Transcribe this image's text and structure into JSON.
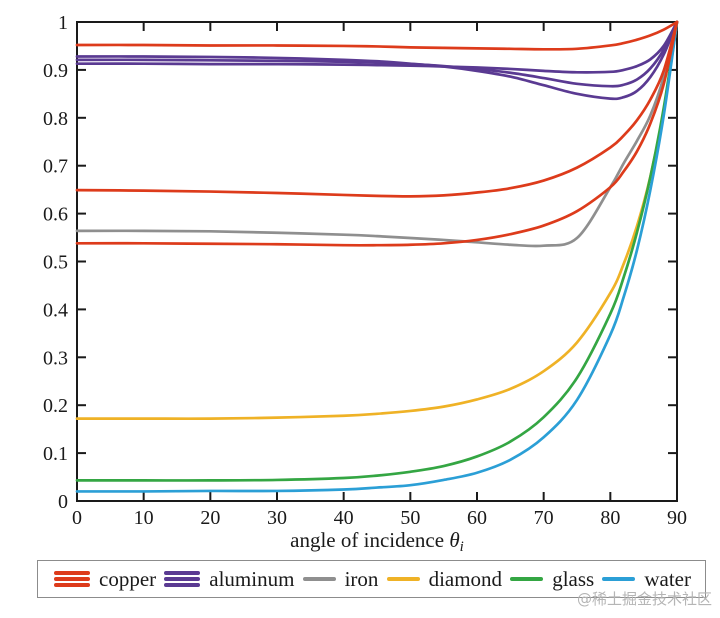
{
  "watermark": "@稀土掘金技术社区",
  "colors": {
    "copper": "#dd3b1b",
    "aluminum": "#5a3a92",
    "iron": "#8f8f8f",
    "diamond": "#efb226",
    "glass": "#34a643",
    "water": "#2b9fd6",
    "axis": "#1a1a1a",
    "legend_border": "#8c8c8c",
    "watermark_gray": "#b5b5b5"
  },
  "chart_data": {
    "type": "line",
    "title": "",
    "xlabel_main": "angle of incidence ",
    "xlabel_symbol": "θ",
    "xlabel_sub": "i",
    "ylabel": "",
    "xlim": [
      0,
      90
    ],
    "ylim": [
      0,
      1
    ],
    "grid": false,
    "legend_position": "bottom",
    "x_tick_labels": [
      "0",
      "10",
      "20",
      "30",
      "40",
      "50",
      "60",
      "70",
      "80",
      "90"
    ],
    "x_tick_values": [
      0,
      10,
      20,
      30,
      40,
      50,
      60,
      70,
      80,
      90
    ],
    "y_tick_labels": [
      "0",
      "0.1",
      "0.2",
      "0.3",
      "0.4",
      "0.5",
      "0.6",
      "0.7",
      "0.8",
      "0.9",
      "1"
    ],
    "y_tick_values": [
      0,
      0.1,
      0.2,
      0.3,
      0.4,
      0.5,
      0.6,
      0.7,
      0.8,
      0.9,
      1
    ],
    "angles": [
      0,
      10,
      20,
      30,
      40,
      45,
      50,
      55,
      60,
      65,
      70,
      75,
      80,
      82,
      84,
      86,
      88,
      90
    ],
    "series": [
      {
        "name": "iron",
        "material": "iron",
        "channel": "",
        "color": "#8f8f8f",
        "values": [
          0.564,
          0.564,
          0.563,
          0.56,
          0.556,
          0.553,
          0.549,
          0.545,
          0.54,
          0.535,
          0.533,
          0.549,
          0.655,
          0.705,
          0.752,
          0.805,
          0.885,
          1.0
        ]
      },
      {
        "name": "diamond",
        "material": "diamond",
        "channel": "",
        "color": "#efb226",
        "values": [
          0.172,
          0.172,
          0.172,
          0.174,
          0.178,
          0.182,
          0.188,
          0.197,
          0.212,
          0.234,
          0.271,
          0.331,
          0.434,
          0.495,
          0.574,
          0.677,
          0.814,
          1.0
        ]
      },
      {
        "name": "glass",
        "material": "glass",
        "channel": "",
        "color": "#34a643",
        "values": [
          0.043,
          0.043,
          0.043,
          0.044,
          0.048,
          0.053,
          0.061,
          0.073,
          0.093,
          0.124,
          0.175,
          0.257,
          0.391,
          0.467,
          0.561,
          0.676,
          0.82,
          1.0
        ]
      },
      {
        "name": "water",
        "material": "water",
        "channel": "",
        "color": "#2b9fd6",
        "values": [
          0.02,
          0.02,
          0.021,
          0.021,
          0.024,
          0.028,
          0.033,
          0.044,
          0.059,
          0.086,
          0.133,
          0.211,
          0.347,
          0.426,
          0.524,
          0.649,
          0.804,
          1.0
        ]
      },
      {
        "name": "aluminum-R",
        "material": "aluminum",
        "channel": "R",
        "color": "#5a3a92",
        "values": [
          0.913,
          0.913,
          0.912,
          0.912,
          0.911,
          0.91,
          0.909,
          0.907,
          0.905,
          0.902,
          0.898,
          0.895,
          0.896,
          0.9,
          0.908,
          0.922,
          0.95,
          1.0
        ]
      },
      {
        "name": "aluminum-G",
        "material": "aluminum",
        "channel": "G",
        "color": "#5a3a92",
        "values": [
          0.921,
          0.921,
          0.92,
          0.919,
          0.917,
          0.915,
          0.912,
          0.908,
          0.902,
          0.894,
          0.883,
          0.871,
          0.866,
          0.869,
          0.88,
          0.903,
          0.942,
          1.0
        ]
      },
      {
        "name": "aluminum-B",
        "material": "aluminum",
        "channel": "B",
        "color": "#5a3a92",
        "values": [
          0.928,
          0.928,
          0.927,
          0.925,
          0.921,
          0.918,
          0.913,
          0.907,
          0.898,
          0.886,
          0.868,
          0.85,
          0.84,
          0.843,
          0.856,
          0.885,
          0.932,
          1.0
        ]
      },
      {
        "name": "copper-R",
        "material": "copper",
        "channel": "R",
        "color": "#dd3b1b",
        "values": [
          0.952,
          0.952,
          0.951,
          0.951,
          0.95,
          0.949,
          0.947,
          0.946,
          0.945,
          0.944,
          0.943,
          0.944,
          0.951,
          0.956,
          0.963,
          0.972,
          0.984,
          1.0
        ]
      },
      {
        "name": "copper-G",
        "material": "copper",
        "channel": "G",
        "color": "#dd3b1b",
        "values": [
          0.649,
          0.648,
          0.646,
          0.643,
          0.639,
          0.637,
          0.636,
          0.638,
          0.644,
          0.653,
          0.669,
          0.696,
          0.738,
          0.763,
          0.795,
          0.838,
          0.898,
          1.0
        ]
      },
      {
        "name": "copper-B",
        "material": "copper",
        "channel": "B",
        "color": "#dd3b1b",
        "values": [
          0.538,
          0.538,
          0.537,
          0.536,
          0.534,
          0.534,
          0.535,
          0.538,
          0.545,
          0.557,
          0.575,
          0.605,
          0.655,
          0.688,
          0.73,
          0.788,
          0.87,
          1.0
        ]
      }
    ]
  },
  "legend": {
    "items": [
      {
        "label": "copper",
        "color": "#dd3b1b",
        "swatch": "triple"
      },
      {
        "label": "aluminum",
        "color": "#5a3a92",
        "swatch": "triple"
      },
      {
        "label": "iron",
        "color": "#8f8f8f",
        "swatch": "single"
      },
      {
        "label": "diamond",
        "color": "#efb226",
        "swatch": "single"
      },
      {
        "label": "glass",
        "color": "#34a643",
        "swatch": "single"
      },
      {
        "label": "water",
        "color": "#2b9fd6",
        "swatch": "single"
      }
    ]
  }
}
